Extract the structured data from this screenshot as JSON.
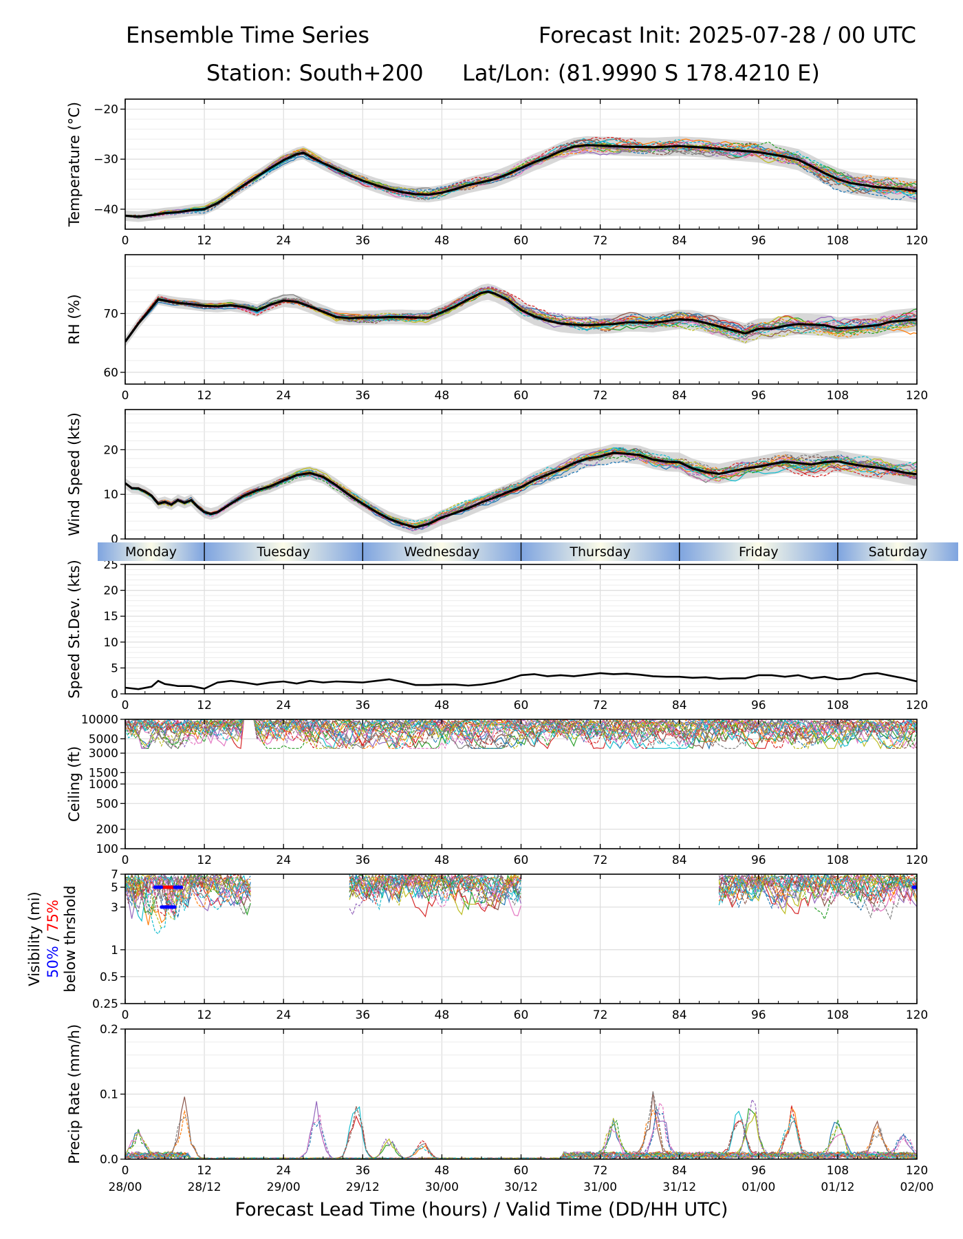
{
  "header": {
    "title_left": "Ensemble Time Series",
    "title_right": "Forecast Init: 2025-07-28 / 00 UTC",
    "station": "Station: South+200",
    "latlon": "Lat/Lon: (81.9990 S 178.4210 E)"
  },
  "xaxis_label": "Forecast Lead Time (hours) / Valid Time (DD/HH UTC)",
  "chart_data": [
    {
      "id": "temperature",
      "type": "line",
      "ylabel": "Temperature (°C)",
      "xlim": [
        0,
        120
      ],
      "ylim": [
        -44,
        -18
      ],
      "yticks": [
        -40,
        -30,
        -20
      ],
      "ytick_labels": [
        "−40",
        "−30",
        "−20"
      ],
      "xticks": [
        0,
        12,
        24,
        36,
        48,
        60,
        72,
        84,
        96,
        108,
        120
      ],
      "ensemble_mean": {
        "x": [
          0,
          2,
          4,
          6,
          8,
          10,
          12,
          14,
          16,
          18,
          20,
          22,
          24,
          26,
          27,
          28,
          30,
          32,
          34,
          36,
          38,
          40,
          42,
          44,
          46,
          48,
          50,
          52,
          54,
          56,
          58,
          60,
          62,
          64,
          66,
          68,
          70,
          72,
          76,
          80,
          84,
          88,
          92,
          96,
          100,
          102,
          104,
          106,
          108,
          110,
          112,
          114,
          116,
          118,
          120
        ],
        "y": [
          -41.3,
          -41.5,
          -41.2,
          -40.8,
          -40.6,
          -40.2,
          -40.0,
          -38.8,
          -37.0,
          -35.2,
          -33.5,
          -31.8,
          -30.2,
          -29.0,
          -28.7,
          -29.4,
          -30.8,
          -32.0,
          -33.2,
          -34.3,
          -35.2,
          -36.0,
          -36.6,
          -37.0,
          -37.1,
          -36.7,
          -36.0,
          -35.2,
          -34.6,
          -34.0,
          -33.0,
          -31.8,
          -30.6,
          -29.6,
          -28.4,
          -27.5,
          -27.2,
          -27.3,
          -27.5,
          -27.6,
          -27.4,
          -27.7,
          -28.2,
          -28.6,
          -29.5,
          -30.1,
          -31.4,
          -32.8,
          -34.0,
          -34.8,
          -35.2,
          -35.6,
          -35.8,
          -36.0,
          -36.4
        ]
      },
      "members": 20
    },
    {
      "id": "rh",
      "type": "line",
      "ylabel": "RH (%)",
      "xlim": [
        0,
        120
      ],
      "ylim": [
        58,
        80
      ],
      "yticks": [
        60,
        70
      ],
      "ytick_labels": [
        "60",
        "70"
      ],
      "xticks": [
        0,
        12,
        24,
        36,
        48,
        60,
        72,
        84,
        96,
        108,
        120
      ],
      "ensemble_mean": {
        "x": [
          0,
          2,
          4,
          5,
          6,
          8,
          10,
          12,
          14,
          16,
          18,
          20,
          22,
          24,
          26,
          28,
          30,
          32,
          34,
          36,
          38,
          40,
          42,
          44,
          46,
          48,
          50,
          52,
          54,
          55,
          56,
          58,
          60,
          62,
          64,
          66,
          68,
          70,
          72,
          74,
          76,
          78,
          80,
          82,
          84,
          86,
          88,
          90,
          92,
          94,
          96,
          98,
          100,
          102,
          104,
          106,
          108,
          110,
          112,
          114,
          116,
          118,
          120
        ],
        "y": [
          65.2,
          68.3,
          71.0,
          72.4,
          72.2,
          71.8,
          71.6,
          71.3,
          71.2,
          71.4,
          71.1,
          70.5,
          71.5,
          72.2,
          72.0,
          71.2,
          70.3,
          69.4,
          69.2,
          69.3,
          69.3,
          69.4,
          69.4,
          69.3,
          69.3,
          70.2,
          71.2,
          72.4,
          73.5,
          73.7,
          73.4,
          72.3,
          70.6,
          69.5,
          68.8,
          68.3,
          68.1,
          68.0,
          68.1,
          68.2,
          68.5,
          68.5,
          68.4,
          68.7,
          69.0,
          68.9,
          68.4,
          67.8,
          67.2,
          66.6,
          67.4,
          67.4,
          67.9,
          68.2,
          68.1,
          68.0,
          67.5,
          67.6,
          67.8,
          68.0,
          68.6,
          68.8,
          69.0
        ]
      },
      "members": 20
    },
    {
      "id": "wind_speed",
      "type": "line",
      "ylabel": "Wind Speed (kts)",
      "xlim": [
        0,
        120
      ],
      "ylim": [
        0,
        29
      ],
      "yticks": [
        0,
        10,
        20
      ],
      "ytick_labels": [
        "0",
        "10",
        "20"
      ],
      "xticks": [
        0,
        12,
        24,
        36,
        48,
        60,
        72,
        84,
        96,
        108,
        120
      ],
      "ensemble_mean": {
        "x": [
          0,
          1,
          2,
          3,
          4,
          5,
          6,
          7,
          8,
          9,
          10,
          11,
          12,
          13,
          14,
          16,
          18,
          20,
          22,
          24,
          26,
          28,
          30,
          32,
          34,
          36,
          38,
          40,
          42,
          44,
          46,
          48,
          50,
          52,
          54,
          56,
          58,
          60,
          62,
          64,
          66,
          68,
          70,
          72,
          74,
          76,
          78,
          80,
          82,
          84,
          86,
          88,
          90,
          92,
          94,
          96,
          98,
          100,
          102,
          104,
          106,
          108,
          110,
          112,
          114,
          116,
          118,
          120
        ],
        "y": [
          12.5,
          11.4,
          11.3,
          10.6,
          9.7,
          7.9,
          8.3,
          7.7,
          8.7,
          8.1,
          8.7,
          7.2,
          6.0,
          5.6,
          6.0,
          7.9,
          9.7,
          10.9,
          11.8,
          13.1,
          14.3,
          14.8,
          13.9,
          12.0,
          9.8,
          7.9,
          6.1,
          4.5,
          3.4,
          2.6,
          3.4,
          4.8,
          5.8,
          6.9,
          8.2,
          9.3,
          10.5,
          11.6,
          13.2,
          14.4,
          15.6,
          17.0,
          18.0,
          18.5,
          19.3,
          19.1,
          18.8,
          17.8,
          17.3,
          17.2,
          15.8,
          15.0,
          14.6,
          15.2,
          15.8,
          16.2,
          16.8,
          17.3,
          17.0,
          16.7,
          17.2,
          17.4,
          16.8,
          16.3,
          16.0,
          15.5,
          14.9,
          14.5
        ]
      },
      "members": 20
    },
    {
      "id": "speed_stdev",
      "type": "line",
      "ylabel": "Speed St.Dev. (kts)",
      "xlim": [
        0,
        120
      ],
      "ylim": [
        0,
        25
      ],
      "yticks": [
        0,
        5,
        10,
        15,
        20,
        25
      ],
      "ytick_labels": [
        "0",
        "5",
        "10",
        "15",
        "20",
        "25"
      ],
      "xticks": [
        0,
        12,
        24,
        36,
        48,
        60,
        72,
        84,
        96,
        108,
        120
      ],
      "series": [
        {
          "x": [
            0,
            2,
            4,
            5,
            6,
            8,
            10,
            12,
            14,
            16,
            18,
            20,
            22,
            24,
            26,
            28,
            30,
            32,
            34,
            36,
            38,
            40,
            42,
            44,
            46,
            48,
            50,
            52,
            54,
            56,
            58,
            60,
            62,
            64,
            66,
            68,
            70,
            72,
            74,
            76,
            78,
            80,
            82,
            84,
            86,
            88,
            90,
            92,
            94,
            96,
            98,
            100,
            102,
            104,
            106,
            108,
            110,
            112,
            114,
            116,
            118,
            120
          ],
          "y": [
            1.2,
            0.9,
            1.4,
            2.5,
            1.9,
            1.5,
            1.5,
            1.0,
            2.2,
            2.5,
            2.2,
            1.8,
            2.2,
            2.4,
            2.0,
            2.5,
            2.2,
            2.4,
            2.3,
            2.2,
            2.5,
            2.8,
            2.3,
            1.7,
            1.7,
            1.8,
            1.8,
            1.6,
            1.8,
            2.2,
            2.8,
            3.6,
            3.8,
            3.4,
            3.6,
            3.4,
            3.7,
            4.0,
            3.8,
            3.9,
            3.7,
            3.4,
            3.3,
            3.3,
            3.1,
            3.2,
            2.9,
            3.0,
            3.0,
            3.6,
            3.6,
            3.3,
            3.6,
            3.0,
            3.3,
            2.8,
            3.0,
            3.8,
            4.0,
            3.5,
            3.0,
            2.4
          ]
        }
      ]
    },
    {
      "id": "ceiling",
      "type": "line",
      "ylabel": "Ceiling (ft)",
      "scale": "log",
      "xlim": [
        0,
        120
      ],
      "ylim": [
        100,
        10000
      ],
      "yticks": [
        100,
        200,
        500,
        1000,
        1500,
        3000,
        5000,
        10000
      ],
      "ytick_labels": [
        "100",
        "200",
        "500",
        "1000",
        "1500",
        "3000",
        "5000",
        "10000"
      ],
      "xticks": [
        0,
        12,
        24,
        36,
        48,
        60,
        72,
        84,
        96,
        108,
        120
      ],
      "members": 20
    },
    {
      "id": "visibility",
      "type": "line",
      "ylabel_parts": [
        "Visibility (mi)",
        "50%",
        "/",
        "75%",
        "below thrshold"
      ],
      "scale": "log",
      "xlim": [
        0,
        120
      ],
      "ylim": [
        0.25,
        7
      ],
      "yticks": [
        0.25,
        0.5,
        1,
        3,
        5,
        7
      ],
      "ytick_labels": [
        "0.25",
        "0.5",
        "1",
        "3",
        "5",
        "7"
      ],
      "xticks": [
        0,
        12,
        24,
        36,
        48,
        60,
        72,
        84,
        96,
        108,
        120
      ],
      "threshold_bars": [
        {
          "x0": 4.5,
          "x1": 8.5,
          "y": 5,
          "color": "#ff0000"
        },
        {
          "x0": 4.5,
          "x1": 5.5,
          "y": 5,
          "color": "#0000ff"
        },
        {
          "x0": 7.5,
          "x1": 8.5,
          "y": 5,
          "color": "#0000ff"
        },
        {
          "x0": 5.5,
          "x1": 7.5,
          "y": 3,
          "color": "#0000ff"
        },
        {
          "x0": 119.5,
          "x1": 120,
          "y": 5,
          "color": "#0000ff"
        }
      ],
      "members": 20
    },
    {
      "id": "precip",
      "type": "line",
      "ylabel": "Precip Rate (mm/h)",
      "xlim": [
        0,
        120
      ],
      "ylim": [
        0,
        0.2
      ],
      "yticks": [
        0.0,
        0.1,
        0.2
      ],
      "ytick_labels": [
        "0.0",
        "0.1",
        "0.2"
      ],
      "xticks": [
        0,
        12,
        24,
        36,
        48,
        60,
        72,
        84,
        96,
        108,
        120
      ],
      "xtick_time_labels": [
        "28/00",
        "28/12",
        "29/00",
        "29/12",
        "30/00",
        "30/12",
        "31/00",
        "31/12",
        "01/00",
        "01/12",
        "02/00"
      ],
      "members": 20
    }
  ],
  "day_strip": [
    "Monday",
    "Tuesday",
    "Wednesday",
    "Thursday",
    "Friday",
    "Saturday"
  ],
  "colors": {
    "member_palette": [
      "#1f77b4",
      "#ff7f0e",
      "#2ca02c",
      "#d62728",
      "#9467bd",
      "#8c564b",
      "#e377c2",
      "#7f7f7f",
      "#bcbd22",
      "#17becf"
    ],
    "mean": "#000000",
    "spread": "#c8c8c8",
    "day_blue": "#7ea4e0",
    "day_cream": "#fbfbe8"
  }
}
